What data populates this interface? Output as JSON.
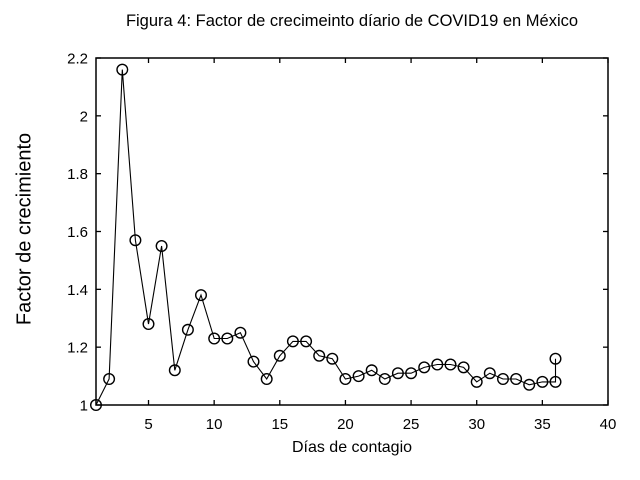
{
  "chart_data": {
    "type": "line",
    "title": "Figura 4: Factor de crecimeinto díario de COVID19 en México",
    "xlabel": "Días de contagio",
    "ylabel": "Factor de crecimiento",
    "xlim": [
      1,
      40
    ],
    "ylim": [
      1,
      2.2
    ],
    "xticks": [
      5,
      10,
      15,
      20,
      25,
      30,
      35,
      40
    ],
    "xtick_labels": [
      "5",
      "10",
      "15",
      "20",
      "25",
      "30",
      "35",
      "40"
    ],
    "yticks": [
      1,
      1.2,
      1.4,
      1.6,
      1.8,
      2,
      2.2
    ],
    "ytick_labels": [
      "1",
      "1.2",
      "1.4",
      "1.6",
      "1.8",
      "2",
      "2.2"
    ],
    "grid": false,
    "legend": null,
    "box": true,
    "marker": "open-circle",
    "line_color": "#000000",
    "axis_color": "#000000",
    "background_color": "#ffffff",
    "series": [
      {
        "x": [
          1,
          2,
          3,
          4,
          5,
          6,
          7,
          8,
          9,
          10,
          11,
          12,
          13,
          14,
          15,
          16,
          17,
          18,
          19,
          20,
          21,
          22,
          23,
          24,
          25,
          26,
          27,
          28,
          29,
          30,
          31,
          32,
          33,
          34,
          35,
          36,
          36
        ],
        "y": [
          1.0,
          1.09,
          2.16,
          1.57,
          1.28,
          1.55,
          1.12,
          1.26,
          1.38,
          1.23,
          1.23,
          1.25,
          1.15,
          1.09,
          1.17,
          1.22,
          1.22,
          1.17,
          1.16,
          1.09,
          1.1,
          1.12,
          1.09,
          1.11,
          1.11,
          1.13,
          1.14,
          1.14,
          1.13,
          1.08,
          1.11,
          1.09,
          1.09,
          1.07,
          1.08,
          1.08,
          1.16
        ]
      }
    ]
  }
}
